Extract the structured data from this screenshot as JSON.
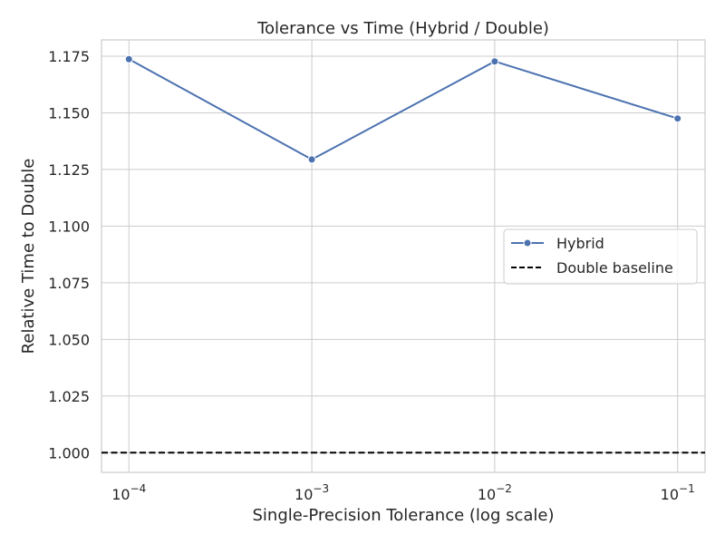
{
  "chart_data": {
    "type": "line",
    "title": "Tolerance vs Time (Hybrid / Double)",
    "xlabel": "Single-Precision Tolerance (log scale)",
    "ylabel": "Relative Time to Double",
    "x_scale": "log",
    "x": [
      0.0001,
      0.001,
      0.01,
      0.1
    ],
    "x_tick_labels": [
      {
        "base": "10",
        "exp": "−4"
      },
      {
        "base": "10",
        "exp": "−3"
      },
      {
        "base": "10",
        "exp": "−2"
      },
      {
        "base": "10",
        "exp": "−1"
      }
    ],
    "y_ticks": [
      "1.000",
      "1.025",
      "1.050",
      "1.075",
      "1.100",
      "1.125",
      "1.150",
      "1.175"
    ],
    "xlim": [
      7.08e-05,
      0.1413
    ],
    "ylim": [
      0.9913,
      1.1822
    ],
    "grid": true,
    "series": [
      {
        "name": "Hybrid",
        "values": [
          1.1737,
          1.1294,
          1.1727,
          1.1475
        ],
        "color": "#4c72b0",
        "marker": "circle"
      }
    ],
    "reference_lines": [
      {
        "name": "Double baseline",
        "y": 1.0,
        "color": "#000000",
        "style": "dashed"
      }
    ],
    "legend": {
      "position": "center-right",
      "entries": [
        "Hybrid",
        "Double baseline"
      ]
    }
  }
}
